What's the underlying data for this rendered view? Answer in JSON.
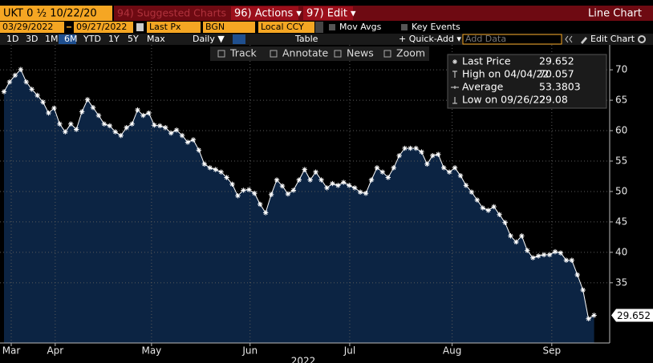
{
  "header": {
    "security": "UKT 0 ½ 10/22/20",
    "menus": [
      "94) Suggested Charts",
      "96) Actions ▾",
      "97) Edit ▾"
    ],
    "view": "Line Chart"
  },
  "settings": {
    "start": "03/29/2022",
    "end": "09/27/2022",
    "field": "Last Px",
    "source": "BGN",
    "currency": "Local CCY",
    "options": [
      "Mov Avgs",
      "Key Events"
    ]
  },
  "toolbar": {
    "periods": [
      "1D",
      "3D",
      "1M",
      "6M",
      "YTD",
      "1Y",
      "5Y",
      "Max"
    ],
    "selected_period": "6M",
    "frequency": "Daily ▼",
    "table": "Table",
    "quick_add": "+ Quick-Add ▾",
    "add_data": "Add Data",
    "edit_chart": "Edit Chart",
    "tools": [
      "Track",
      "Annotate",
      "News",
      "Zoom"
    ]
  },
  "chart_data": {
    "type": "line",
    "color": "#ffffff",
    "fill_color": "#0c2443",
    "values": [
      66.4,
      68.0,
      69.1,
      70.057,
      68.0,
      66.8,
      65.8,
      64.7,
      62.9,
      63.7,
      61.1,
      59.8,
      61.1,
      60.2,
      63.1,
      65.1,
      63.8,
      62.5,
      61.1,
      60.8,
      59.8,
      59.2,
      60.5,
      61.1,
      63.4,
      62.5,
      62.9,
      60.9,
      60.8,
      60.5,
      59.6,
      60.1,
      59.2,
      58.1,
      58.5,
      56.8,
      54.5,
      53.9,
      53.6,
      53.2,
      52.3,
      51.2,
      49.3,
      50.2,
      50.3,
      49.7,
      47.9,
      46.5,
      49.5,
      51.9,
      50.9,
      49.6,
      50.2,
      51.9,
      53.6,
      51.9,
      53.2,
      51.9,
      50.6,
      51.3,
      51.0,
      51.5,
      51.0,
      50.6,
      49.9,
      49.7,
      51.9,
      53.9,
      53.2,
      52.3,
      53.9,
      55.9,
      57.1,
      57.1,
      57.1,
      56.5,
      54.5,
      55.9,
      56.1,
      53.9,
      53.2,
      53.9,
      52.6,
      51.0,
      49.9,
      48.6,
      47.3,
      46.9,
      47.5,
      46.2,
      44.9,
      42.7,
      41.7,
      42.7,
      40.3,
      39.1,
      39.4,
      39.6,
      39.6,
      40.1,
      39.9,
      38.7,
      38.7,
      36.3,
      33.8,
      29.08,
      29.652
    ],
    "xlim": [
      -0.72,
      108.8
    ],
    "xticks": [
      {
        "value": 1.3,
        "label": "Mar"
      },
      {
        "value": 9.2,
        "label": "Apr"
      },
      {
        "value": 26.5,
        "label": "May"
      },
      {
        "value": 44.2,
        "label": "Jun"
      },
      {
        "value": 62.1,
        "label": "Jul"
      },
      {
        "value": 80.5,
        "label": "Aug"
      },
      {
        "value": 98.4,
        "label": "Sep"
      }
    ],
    "x_label": "2022",
    "ylim": [
      25.1,
      74.1
    ],
    "yticks": [
      35,
      40,
      45,
      50,
      55,
      60,
      65,
      70
    ],
    "grid": true,
    "legend": [
      {
        "name": "Last Price",
        "value": 29.652
      },
      {
        "name": "High on 04/04/22",
        "value": 70.057
      },
      {
        "name": "Average",
        "value": 53.3803
      },
      {
        "name": "Low on 09/26/22",
        "value": 29.08
      }
    ]
  }
}
